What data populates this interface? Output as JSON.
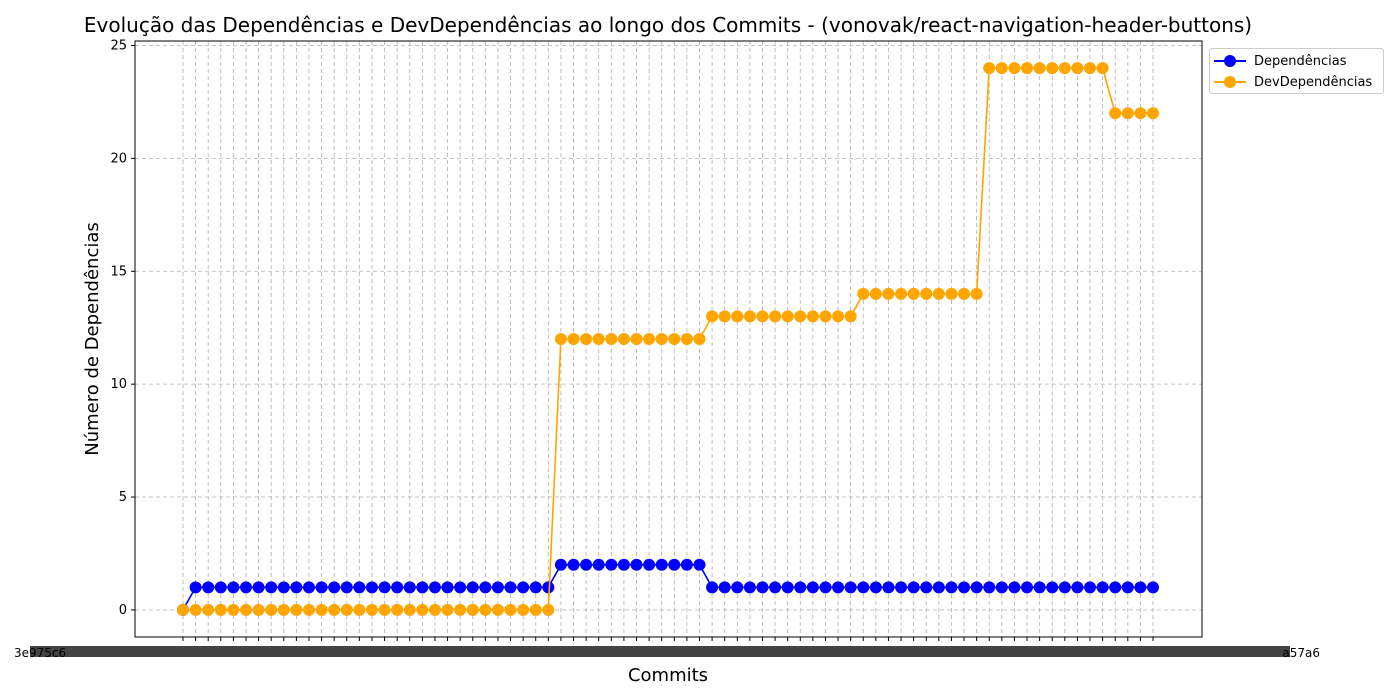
{
  "chart_data": {
    "type": "line",
    "title": "Evolução das Dependências e DevDependências ao longo dos Commits - (vonovak/react-navigation-header-buttons)",
    "xlabel": "Commits",
    "ylabel": "Número de Dependências",
    "first_tick_label": "3e975c6",
    "last_tick_label": "a57a6",
    "ylim": [
      -1.2,
      25.2
    ],
    "yticks": [
      0,
      5,
      10,
      15,
      20,
      25
    ],
    "grid": true,
    "legend_position": "top-right-outside",
    "series": [
      {
        "name": "Dependências",
        "color": "#0000ff",
        "values": [
          0,
          1,
          1,
          1,
          1,
          1,
          1,
          1,
          1,
          1,
          1,
          1,
          1,
          1,
          1,
          1,
          1,
          1,
          1,
          1,
          1,
          1,
          1,
          1,
          1,
          1,
          1,
          1,
          1,
          1,
          2,
          2,
          2,
          2,
          2,
          2,
          2,
          2,
          2,
          2,
          2,
          2,
          1,
          1,
          1,
          1,
          1,
          1,
          1,
          1,
          1,
          1,
          1,
          1,
          1,
          1,
          1,
          1,
          1,
          1,
          1,
          1,
          1,
          1,
          1,
          1,
          1,
          1,
          1,
          1,
          1,
          1,
          1,
          1,
          1,
          1,
          1,
          1
        ]
      },
      {
        "name": "DevDependências",
        "color": "#ffa500",
        "values": [
          0,
          0,
          0,
          0,
          0,
          0,
          0,
          0,
          0,
          0,
          0,
          0,
          0,
          0,
          0,
          0,
          0,
          0,
          0,
          0,
          0,
          0,
          0,
          0,
          0,
          0,
          0,
          0,
          0,
          0,
          12,
          12,
          12,
          12,
          12,
          12,
          12,
          12,
          12,
          12,
          12,
          12,
          13,
          13,
          13,
          13,
          13,
          13,
          13,
          13,
          13,
          13,
          13,
          13,
          14,
          14,
          14,
          14,
          14,
          14,
          14,
          14,
          14,
          14,
          24,
          24,
          24,
          24,
          24,
          24,
          24,
          24,
          24,
          24,
          22,
          22,
          22,
          22
        ]
      }
    ]
  }
}
